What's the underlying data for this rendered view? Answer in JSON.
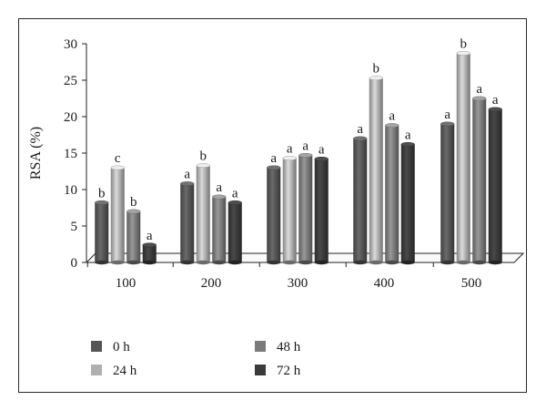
{
  "chart_data": {
    "type": "bar",
    "title": "",
    "xlabel": "",
    "ylabel": "RSA (%)",
    "ylim": [
      0,
      30
    ],
    "yticks": [
      0,
      5,
      10,
      15,
      20,
      25,
      30
    ],
    "categories": [
      "100",
      "200",
      "300",
      "400",
      "500"
    ],
    "grid": false,
    "legend_position": "bottom",
    "style": "3d-cylinder",
    "series": [
      {
        "name": "0 h",
        "color": "#555555",
        "values": [
          8.2,
          10.8,
          13.0,
          17.0,
          19.0
        ],
        "labels": [
          "b",
          "a",
          "a",
          "a",
          "a"
        ]
      },
      {
        "name": "24 h",
        "color": "#b0b0b0",
        "values": [
          13.0,
          13.3,
          14.3,
          25.3,
          28.7
        ],
        "labels": [
          "c",
          "b",
          "a",
          "b",
          "b"
        ]
      },
      {
        "name": "48 h",
        "color": "#7a7a7a",
        "values": [
          7.0,
          9.0,
          14.7,
          18.8,
          22.5
        ],
        "labels": [
          "b",
          "a",
          "a",
          "a",
          "a"
        ]
      },
      {
        "name": "72 h",
        "color": "#3a3a3a",
        "values": [
          2.4,
          8.2,
          14.2,
          16.2,
          21.0
        ],
        "labels": [
          "a",
          "a",
          "a",
          "a",
          "a"
        ]
      }
    ]
  }
}
